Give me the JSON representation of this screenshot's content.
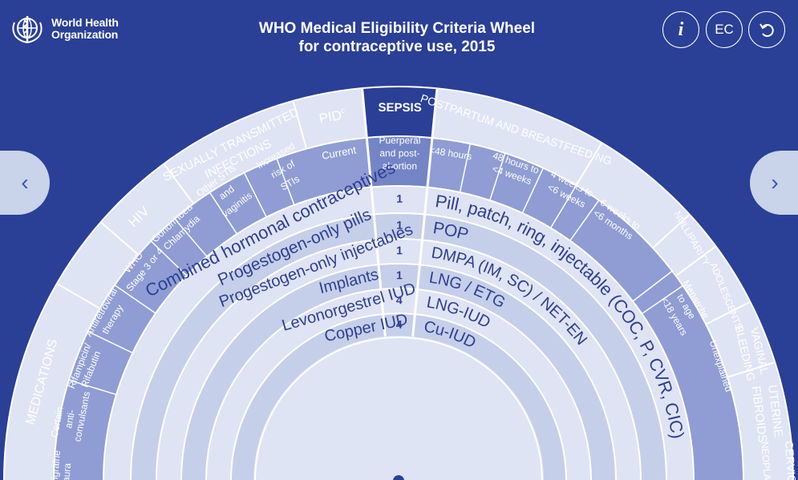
{
  "header": {
    "org_line1": "World Health",
    "org_line2": "Organization",
    "title_line1": "WHO Medical Eligibility Criteria Wheel",
    "title_line2": "for contraceptive use, 2015",
    "info_label": "i",
    "ec_label": "EC"
  },
  "categories": {
    "medications": "MEDICATIONS",
    "hiv": "HIV",
    "sti_line1": "SEXUALLY TRANSMITTED",
    "sti_line2": "INFECTIONS",
    "pid": "PID",
    "pid_sup": "c",
    "sepsis": "SEPSIS",
    "postpartum": "POSTPARTUM AND BREASTFEEDING",
    "nulliparity": "NULLIPARITY",
    "adolescents": "ADOLESCENTS",
    "vaginal_line1": "VAGINAL",
    "vaginal_line2": "BLEEDING",
    "uterine_line1": "UTERINE",
    "uterine_line2": "FIBROIDS",
    "cervical": "CERVICAL",
    "cervical_line2": "NEOPLASIA"
  },
  "subcategories": {
    "migraine_line1": "Migraine",
    "migraine_line2": "aura",
    "anticonv_line1": "Certain",
    "anticonv_line2": "anti-",
    "anticonv_line3": "convulsants",
    "rifampicin_line1": "Rifampicin/",
    "rifampicin_line2": "Rifabutin",
    "arv_line1": "Antiretroviral",
    "arv_line2": "therapy",
    "who_line1": "WHO",
    "who_line2": "Stage 3 or 4",
    "gono_line1": "Gonorrhoea",
    "gono_line2": "Chlamydia",
    "other_sti_line1": "Other STIs",
    "other_sti_line2": "and",
    "other_sti_line3": "vaginitis",
    "risk_line1": "Increased",
    "risk_line2": "risk of",
    "risk_line3": "STIs",
    "pid_current": "Current",
    "sepsis_line1": "Puerperal",
    "sepsis_line2": "and post-",
    "sepsis_line3": "abortion",
    "pp1": "<48 hours",
    "pp2_line1": "48 hours to",
    "pp2_line2": "<4 weeks",
    "pp3_line1": "4 weeks to",
    "pp3_line2": "<6 weeks",
    "pp4_line1": "6 weeks to",
    "pp4_line2": "<6 months",
    "adol_line1": "Menarche",
    "adol_line2": "to age",
    "adol_line3": "<18 years",
    "unexplained": "Unexplained"
  },
  "methods": [
    {
      "name": "Combined hormonal contraceptives",
      "abbr": "Pill, patch, ring, injectable (COC, P, CVR, CIC)",
      "score": "1"
    },
    {
      "name": "Progestogen-only pills",
      "abbr": "POP",
      "score": "1"
    },
    {
      "name": "Progestogen-only injectables",
      "abbr": "DMPA (IM, SC) / NET-EN",
      "score": "1"
    },
    {
      "name": "Implants",
      "abbr": "LNG / ETG",
      "score": "1"
    },
    {
      "name": "Levonorgestrel IUD",
      "abbr": "LNG-IUD",
      "score": "4"
    },
    {
      "name": "Copper IUD",
      "abbr": "Cu-IUD",
      "score": "4"
    }
  ],
  "colors": {
    "background": "#2a3f96",
    "light_ring": "#dfe4f4",
    "mid_ring": "#c6cfe9",
    "sub_ring": "#8f9dd4",
    "nav": "#c9d3ea",
    "label_text": "#2e3f93"
  }
}
